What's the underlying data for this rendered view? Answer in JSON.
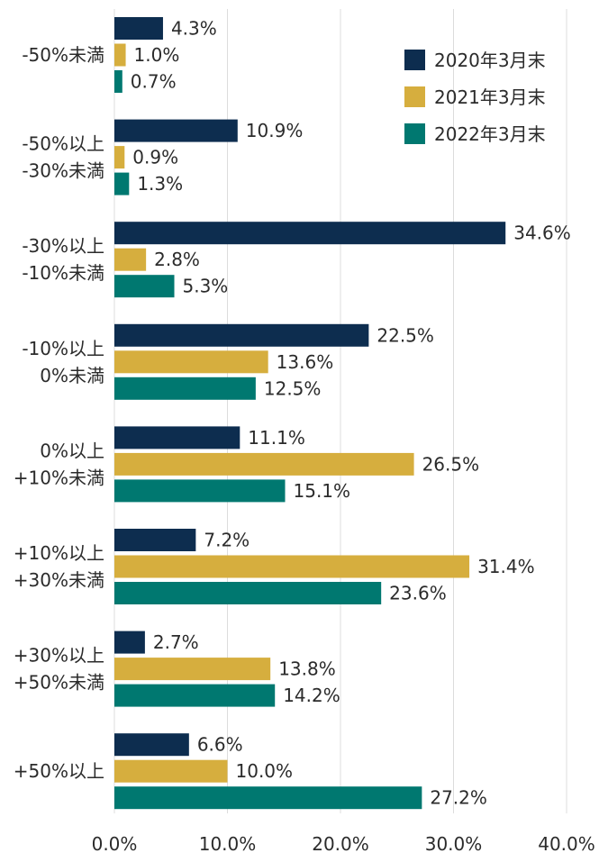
{
  "chart_data": {
    "type": "bar",
    "orientation": "horizontal",
    "categories": [
      [
        "-50%未満"
      ],
      [
        "-50%以上",
        "-30%未満"
      ],
      [
        "-30%以上",
        "-10%未満"
      ],
      [
        "-10%以上",
        "0%未満"
      ],
      [
        "0%以上",
        "+10%未満"
      ],
      [
        "+10%以上",
        "+30%未満"
      ],
      [
        "+30%以上",
        "+50%未満"
      ],
      [
        "+50%以上"
      ]
    ],
    "series": [
      {
        "name": "2020年3月末",
        "color": "#0d2d4f",
        "values": [
          4.3,
          10.9,
          34.6,
          22.5,
          11.1,
          7.2,
          2.7,
          6.6
        ],
        "labels": [
          "4.3%",
          "10.9%",
          "34.6%",
          "22.5%",
          "11.1%",
          "7.2%",
          "2.7%",
          "6.6%"
        ]
      },
      {
        "name": "2021年3月末",
        "color": "#d6ae3e",
        "values": [
          1.0,
          0.9,
          2.8,
          13.6,
          26.5,
          31.4,
          13.8,
          10.0
        ],
        "labels": [
          "1.0%",
          "0.9%",
          "2.8%",
          "13.6%",
          "26.5%",
          "31.4%",
          "13.8%",
          "10.0%"
        ]
      },
      {
        "name": "2022年3月末",
        "color": "#007870",
        "values": [
          0.7,
          1.3,
          5.3,
          12.5,
          15.1,
          23.6,
          14.2,
          27.2
        ],
        "labels": [
          "0.7%",
          "1.3%",
          "5.3%",
          "12.5%",
          "15.1%",
          "23.6%",
          "14.2%",
          "27.2%"
        ]
      }
    ],
    "xlim": [
      0,
      40
    ],
    "x_ticks": [
      0,
      10,
      20,
      30,
      40
    ],
    "x_tick_labels": [
      "0.0%",
      "10.0%",
      "20.0%",
      "30.0%",
      "40.0%"
    ],
    "grid": true,
    "legend_position": "top-right"
  }
}
